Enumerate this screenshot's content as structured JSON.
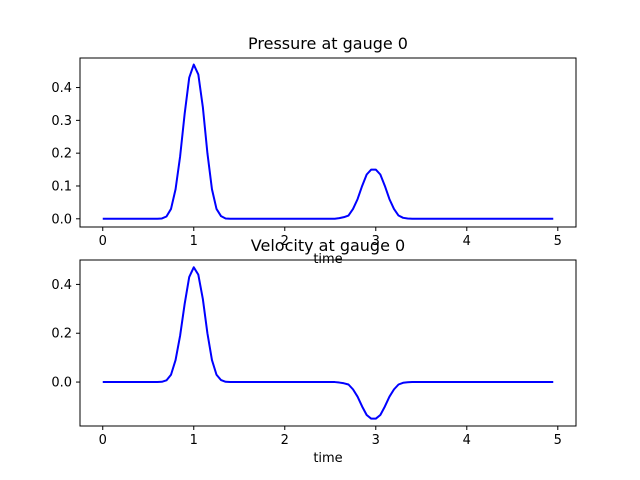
{
  "chart_data": [
    {
      "type": "line",
      "title": "Pressure at gauge 0",
      "xlabel": "time",
      "ylabel": "",
      "xlim": [
        -0.25,
        5.2
      ],
      "ylim": [
        -0.025,
        0.49
      ],
      "xticks": [
        0,
        1,
        2,
        3,
        4,
        5
      ],
      "yticks": [
        0.0,
        0.1,
        0.2,
        0.3,
        0.4
      ],
      "xtick_labels": [
        "0",
        "1",
        "2",
        "3",
        "4",
        "5"
      ],
      "ytick_labels": [
        "0.0",
        "0.1",
        "0.2",
        "0.3",
        "0.4"
      ],
      "grid": false,
      "series": [
        {
          "color": "#0000ff",
          "x": [
            0.0,
            0.6,
            0.65,
            0.7,
            0.75,
            0.8,
            0.85,
            0.9,
            0.95,
            1.0,
            1.05,
            1.1,
            1.15,
            1.2,
            1.25,
            1.3,
            1.35,
            1.4,
            2.5,
            2.55,
            2.6,
            2.65,
            2.7,
            2.75,
            2.8,
            2.85,
            2.9,
            2.95,
            3.0,
            3.05,
            3.1,
            3.15,
            3.2,
            3.25,
            3.3,
            3.35,
            3.4,
            4.95
          ],
          "y": [
            0.0,
            0.0,
            0.001,
            0.007,
            0.03,
            0.09,
            0.19,
            0.32,
            0.43,
            0.47,
            0.44,
            0.34,
            0.2,
            0.09,
            0.03,
            0.008,
            0.001,
            0.0,
            0.0,
            0.0,
            0.002,
            0.005,
            0.01,
            0.03,
            0.06,
            0.1,
            0.135,
            0.15,
            0.15,
            0.135,
            0.1,
            0.06,
            0.03,
            0.01,
            0.003,
            0.001,
            0.0,
            0.0
          ]
        }
      ]
    },
    {
      "type": "line",
      "title": "Velocity at gauge 0",
      "xlabel": "time",
      "ylabel": "",
      "xlim": [
        -0.25,
        5.2
      ],
      "ylim": [
        -0.18,
        0.5
      ],
      "xticks": [
        0,
        1,
        2,
        3,
        4,
        5
      ],
      "yticks": [
        0.0,
        0.2,
        0.4
      ],
      "xtick_labels": [
        "0",
        "1",
        "2",
        "3",
        "4",
        "5"
      ],
      "ytick_labels": [
        "0.0",
        "0.2",
        "0.4"
      ],
      "grid": false,
      "series": [
        {
          "color": "#0000ff",
          "x": [
            0.0,
            0.6,
            0.65,
            0.7,
            0.75,
            0.8,
            0.85,
            0.9,
            0.95,
            1.0,
            1.05,
            1.1,
            1.15,
            1.2,
            1.25,
            1.3,
            1.35,
            1.4,
            2.5,
            2.55,
            2.6,
            2.65,
            2.7,
            2.75,
            2.8,
            2.85,
            2.9,
            2.95,
            3.0,
            3.05,
            3.1,
            3.15,
            3.2,
            3.25,
            3.3,
            3.35,
            3.4,
            4.95
          ],
          "y": [
            0.0,
            0.0,
            0.001,
            0.007,
            0.03,
            0.09,
            0.19,
            0.32,
            0.43,
            0.47,
            0.44,
            0.34,
            0.2,
            0.09,
            0.03,
            0.008,
            0.001,
            0.0,
            0.0,
            0.0,
            -0.002,
            -0.005,
            -0.01,
            -0.03,
            -0.06,
            -0.1,
            -0.135,
            -0.15,
            -0.15,
            -0.135,
            -0.1,
            -0.06,
            -0.03,
            -0.01,
            -0.003,
            -0.001,
            0.0,
            0.0
          ]
        }
      ]
    }
  ]
}
